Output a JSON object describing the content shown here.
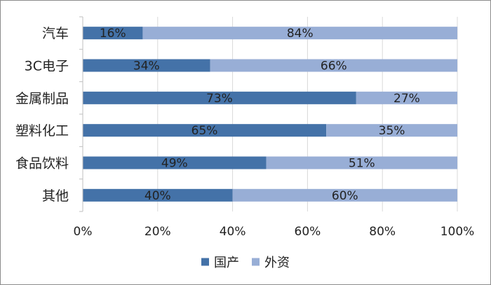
{
  "chart_data": {
    "type": "bar",
    "orientation": "horizontal",
    "stacked": "percent",
    "categories": [
      "汽车",
      "3C电子",
      "金属制品",
      "塑料化工",
      "食品饮料",
      "其他"
    ],
    "series": [
      {
        "name": "国产",
        "values": [
          16,
          34,
          73,
          65,
          49,
          40
        ],
        "labels": [
          "16%",
          "34%",
          "73%",
          "65%",
          "49%",
          "40%"
        ],
        "color": "#4472a8"
      },
      {
        "name": "外资",
        "values": [
          84,
          66,
          27,
          35,
          51,
          60
        ],
        "labels": [
          "84%",
          "66%",
          "27%",
          "35%",
          "51%",
          "60%"
        ],
        "color": "#98aed6"
      }
    ],
    "x_ticks": [
      "0%",
      "20%",
      "40%",
      "60%",
      "80%",
      "100%"
    ],
    "xlim": [
      0,
      100
    ],
    "grid": {
      "vertical": true,
      "color": "#d9d9d9"
    },
    "legend": {
      "position": "bottom"
    },
    "title": "",
    "xlabel": "",
    "ylabel": ""
  }
}
